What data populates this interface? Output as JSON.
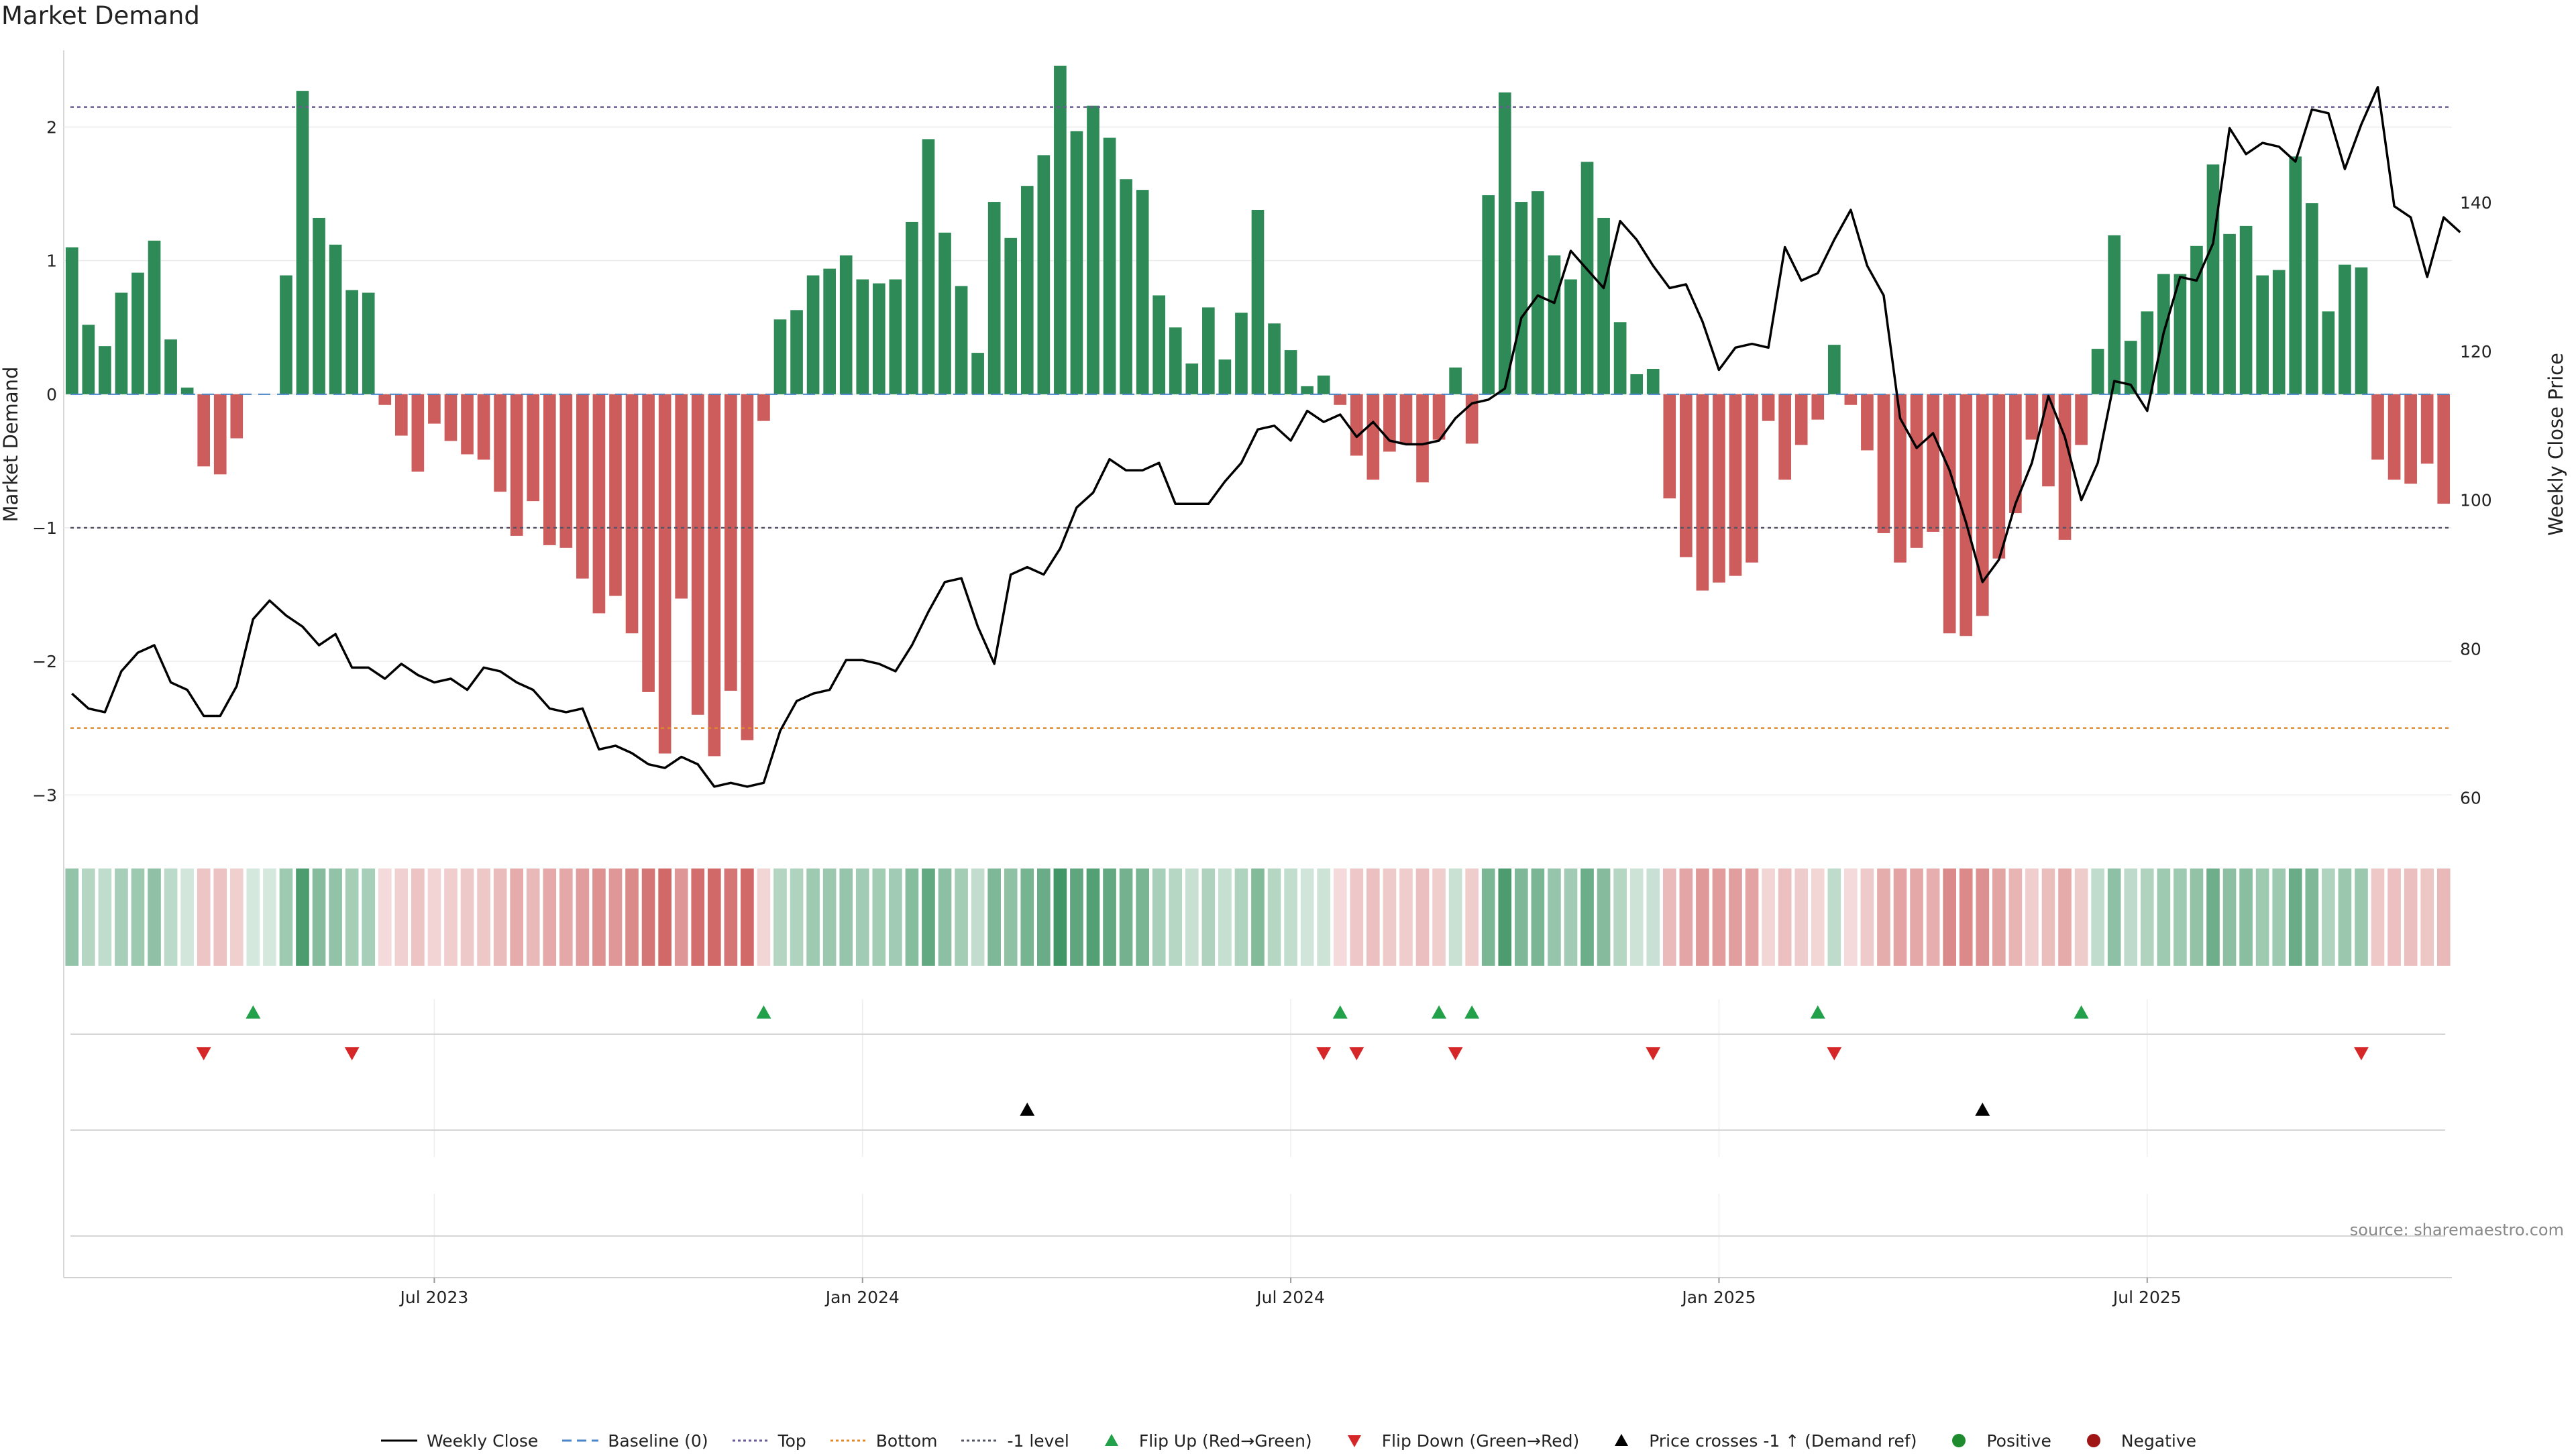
{
  "title": "Market Demand",
  "source": "source: sharemaestro.com",
  "chart_data": {
    "type": "bar",
    "left_axis": {
      "label": "Market Demand",
      "ylim": [
        -3.3,
        2.55
      ],
      "ticks": [
        -3,
        -2,
        -1,
        0,
        1,
        2
      ]
    },
    "right_axis": {
      "label": "Weekly Close Price",
      "ylim": [
        55,
        160
      ],
      "ticks": [
        60,
        80,
        100,
        120,
        140
      ]
    },
    "x_ticks": [
      "Jul 2023",
      "Jan 2024",
      "Jul 2024",
      "Jan 2025",
      "Jul 2025"
    ],
    "x_tick_weeks": [
      22,
      48,
      74,
      100,
      126
    ],
    "levels": {
      "top": 2.15,
      "bottom": -2.5,
      "minus_one": -1.0,
      "baseline": 0
    },
    "demand": [
      1.1,
      0.52,
      0.36,
      0.76,
      0.91,
      1.15,
      0.41,
      0.05,
      -0.54,
      -0.6,
      -0.33,
      0,
      0,
      0.89,
      2.27,
      1.32,
      1.12,
      0.78,
      0.76,
      -0.08,
      -0.31,
      -0.58,
      -0.22,
      -0.35,
      -0.45,
      -0.49,
      -0.73,
      -1.06,
      -0.8,
      -1.13,
      -1.15,
      -1.38,
      -1.64,
      -1.51,
      -1.79,
      -2.23,
      -2.69,
      -1.53,
      -2.4,
      -2.71,
      -2.22,
      -2.59,
      -0.2,
      0.56,
      0.63,
      0.89,
      0.94,
      1.04,
      0.86,
      0.83,
      0.86,
      1.29,
      1.91,
      1.21,
      0.81,
      0.31,
      1.44,
      1.17,
      1.56,
      1.79,
      2.46,
      1.97,
      2.16,
      1.92,
      1.61,
      1.53,
      0.74,
      0.5,
      0.23,
      0.65,
      0.26,
      0.61,
      1.38,
      0.53,
      0.33,
      0.06,
      0.14,
      -0.08,
      -0.46,
      -0.64,
      -0.43,
      -0.37,
      -0.66,
      -0.34,
      0.2,
      -0.37,
      1.49,
      2.26,
      1.44,
      1.52,
      1.04,
      0.86,
      1.74,
      1.32,
      0.54,
      0.15,
      0.19,
      -0.78,
      -1.22,
      -1.47,
      -1.41,
      -1.36,
      -1.26,
      -0.2,
      -0.64,
      -0.38,
      -0.19,
      0.37,
      -0.08,
      -0.42,
      -1.04,
      -1.26,
      -1.15,
      -1.03,
      -1.79,
      -1.81,
      -1.66,
      -1.23,
      -0.89,
      -0.34,
      -0.69,
      -1.09,
      -0.38,
      0.34,
      1.19,
      0.4,
      0.62,
      0.9,
      0.9,
      1.11,
      1.72,
      1.2,
      1.26,
      0.89,
      0.93,
      1.78,
      1.43,
      0.62,
      0.97,
      0.95,
      -0.49,
      -0.64,
      -0.67,
      -0.52,
      -0.82
    ],
    "weekly_close": [
      74,
      72,
      71.5,
      77,
      79.5,
      80.5,
      75.5,
      74.5,
      71,
      71,
      75,
      84,
      86.5,
      84.5,
      83,
      80.5,
      82,
      77.5,
      77.5,
      76,
      78,
      76.5,
      75.5,
      76,
      74.5,
      77.5,
      77,
      75.5,
      74.5,
      72,
      71.5,
      72,
      66.5,
      67,
      66,
      64.5,
      64,
      65.5,
      64.5,
      61.5,
      62,
      61.5,
      62,
      69,
      73,
      74,
      74.5,
      78.5,
      78.5,
      78,
      77,
      80.5,
      85,
      89,
      89.5,
      83,
      78,
      90,
      91,
      90,
      93.5,
      99,
      101,
      105.5,
      104,
      104,
      105,
      99.5,
      99.5,
      99.5,
      102.5,
      105,
      109.5,
      110,
      108,
      112,
      110.5,
      111.5,
      108.5,
      110.5,
      108,
      107.5,
      107.5,
      108,
      111,
      113,
      113.5,
      115,
      124.5,
      127.5,
      126.5,
      133.5,
      131,
      128.5,
      137.5,
      135,
      131.5,
      128.5,
      129,
      124,
      117.5,
      120.5,
      121,
      120.5,
      134,
      129.5,
      130.5,
      135,
      139,
      131.5,
      127.5,
      111,
      107,
      109,
      104,
      97,
      89,
      92,
      99.5,
      105,
      114,
      108.5,
      100,
      105,
      116,
      115.5,
      112,
      122.5,
      130,
      129.5,
      134.5,
      150,
      146.5,
      148,
      147.5,
      145.5,
      152.5,
      152,
      144.5,
      150.5,
      155.5,
      139.5,
      138,
      130,
      138,
      136
    ],
    "series": [
      {
        "name": "Weekly Close"
      },
      {
        "name": "Baseline (0)"
      },
      {
        "name": "Top"
      },
      {
        "name": "Bottom"
      },
      {
        "name": "-1 level"
      },
      {
        "name": "Flip Up (Red→Green)",
        "weeks": [
          11,
          42,
          77,
          83,
          85,
          106,
          122
        ]
      },
      {
        "name": "Flip Down (Green→Red)",
        "weeks": [
          8,
          17,
          76,
          78,
          84,
          96,
          107,
          139
        ]
      },
      {
        "name": "Price crosses -1 ↑ (Demand ref)",
        "weeks": [
          58,
          116
        ]
      },
      {
        "name": "Positive"
      },
      {
        "name": "Negative"
      }
    ],
    "grid": true,
    "legend_placement": "bottom"
  },
  "colors": {
    "positive": "#2e8b57",
    "negative": "#cd5c5c",
    "price": "#000000",
    "baseline": "#4a86c8",
    "top": "#6b5b95",
    "bottom": "#e08a2c",
    "minus_one": "#555566",
    "flip_up": "#22a04a",
    "flip_down": "#d62728",
    "cross": "#000000",
    "legend_positive": "#1e8c2e",
    "legend_negative": "#a01515"
  }
}
